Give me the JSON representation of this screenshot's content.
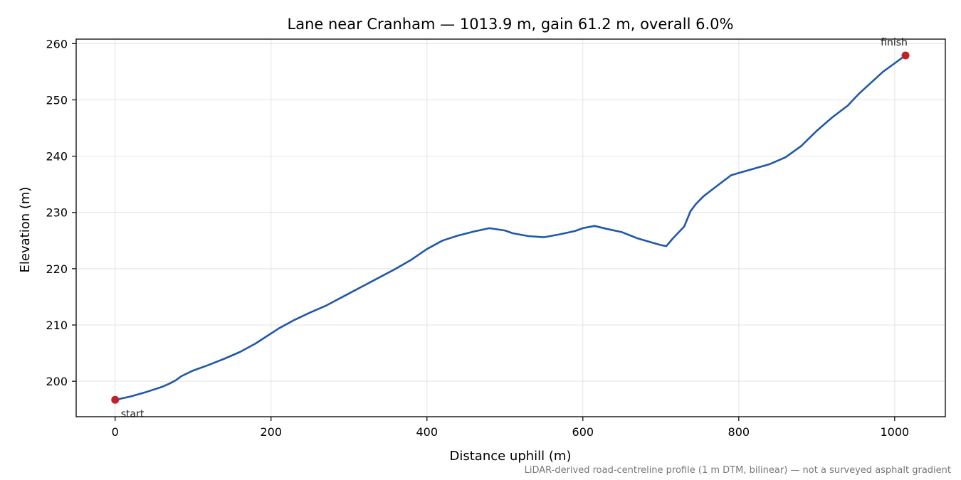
{
  "chart_data": {
    "type": "line",
    "title": "Lane near Cranham — 1013.9 m, gain 61.2 m, overall 6.0%",
    "xlabel": "Distance uphill (m)",
    "ylabel": "Elevation (m)",
    "xlim": [
      -50,
      1065
    ],
    "ylim": [
      193.7,
      260.8
    ],
    "xticks": [
      0,
      200,
      400,
      600,
      800,
      1000
    ],
    "yticks": [
      200,
      210,
      220,
      230,
      240,
      250,
      260
    ],
    "grid": true,
    "line_color": "#2058a8",
    "marker_color": "#c0202a",
    "series": [
      {
        "x": [
          0,
          20,
          40,
          60,
          70,
          78,
          85,
          100,
          120,
          140,
          160,
          180,
          200,
          210,
          230,
          250,
          270,
          300,
          330,
          360,
          380,
          400,
          420,
          440,
          460,
          480,
          500,
          510,
          530,
          550,
          570,
          590,
          600,
          615,
          630,
          650,
          670,
          690,
          700,
          707,
          715,
          730,
          738,
          745,
          755,
          770,
          790,
          800,
          820,
          840,
          860,
          880,
          900,
          920,
          940,
          948,
          955,
          970,
          985,
          1000,
          1013.9
        ],
        "y": [
          196.7,
          197.3,
          198.1,
          199.0,
          199.6,
          200.2,
          200.9,
          201.9,
          202.9,
          204.0,
          205.2,
          206.7,
          208.5,
          209.4,
          210.9,
          212.2,
          213.4,
          215.6,
          217.8,
          220.0,
          221.6,
          223.5,
          225.0,
          225.9,
          226.6,
          227.2,
          226.8,
          226.3,
          225.8,
          225.6,
          226.1,
          226.7,
          227.2,
          227.6,
          227.1,
          226.5,
          225.4,
          224.6,
          224.2,
          224.0,
          225.3,
          227.5,
          230.2,
          231.5,
          232.9,
          234.5,
          236.6,
          237.0,
          237.8,
          238.6,
          239.8,
          241.8,
          244.5,
          246.9,
          249.0,
          250.2,
          251.2,
          253.1,
          255.0,
          256.5,
          257.9
        ]
      }
    ],
    "points": [
      {
        "label": "start",
        "x": 0,
        "y": 196.7
      },
      {
        "label": "finish",
        "x": 1013.9,
        "y": 257.9
      }
    ],
    "footnote": "LiDAR-derived road-centreline profile (1 m DTM, bilinear) — not a surveyed asphalt gradient"
  }
}
